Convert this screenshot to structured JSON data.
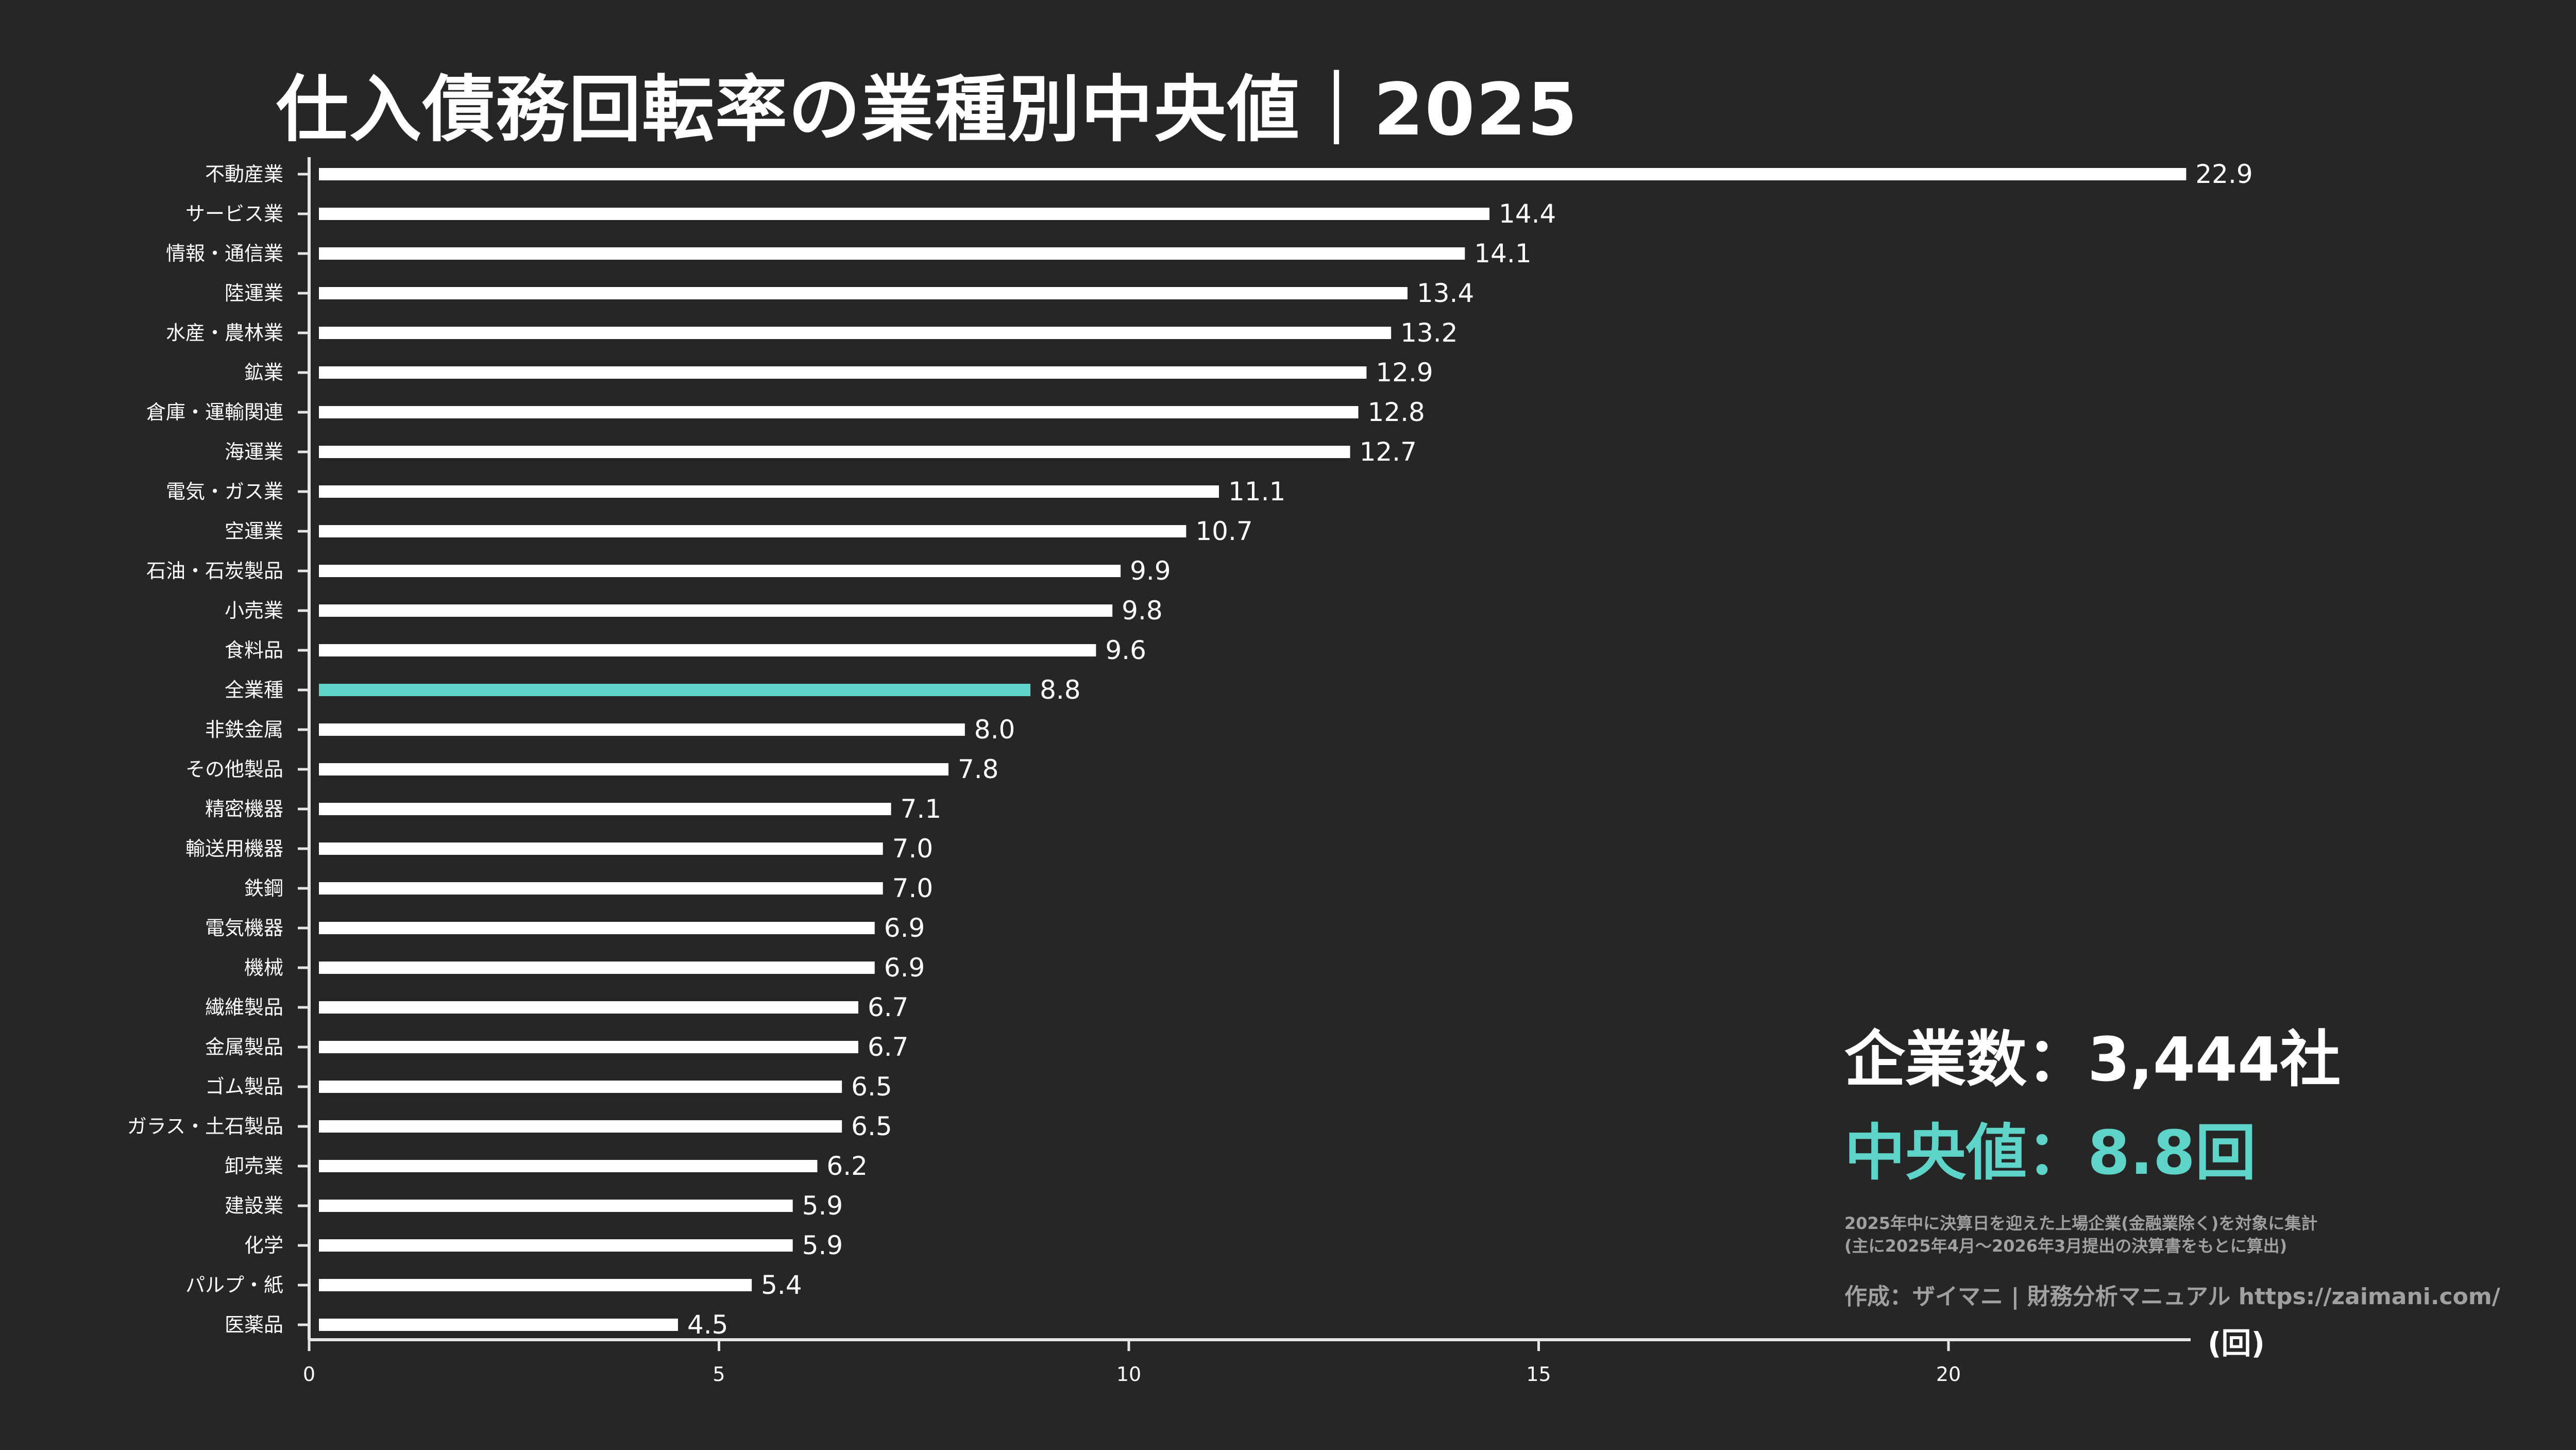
{
  "chart_data": {
    "type": "bar",
    "orientation": "horizontal",
    "title": "仕入債務回転率の業種別中央値｜2025",
    "categories": [
      "不動産業",
      "サービス業",
      "情報・通信業",
      "陸運業",
      "水産・農林業",
      "鉱業",
      "倉庫・運輸関連",
      "海運業",
      "電気・ガス業",
      "空運業",
      "石油・石炭製品",
      "小売業",
      "食料品",
      "全業種",
      "非鉄金属",
      "その他製品",
      "精密機器",
      "輸送用機器",
      "鉄鋼",
      "電気機器",
      "機械",
      "繊維製品",
      "金属製品",
      "ゴム製品",
      "ガラス・土石製品",
      "卸売業",
      "建設業",
      "化学",
      "パルプ・紙",
      "医薬品"
    ],
    "values": [
      22.9,
      14.4,
      14.1,
      13.4,
      13.2,
      12.9,
      12.8,
      12.7,
      11.1,
      10.7,
      9.9,
      9.8,
      9.6,
      8.8,
      8.0,
      7.8,
      7.1,
      7.0,
      7.0,
      6.9,
      6.9,
      6.7,
      6.7,
      6.5,
      6.5,
      6.2,
      5.9,
      5.9,
      5.4,
      4.5
    ],
    "value_labels": [
      "22.9",
      "14.4",
      "14.1",
      "13.4",
      "13.2",
      "12.9",
      "12.8",
      "12.7",
      "11.1",
      "10.7",
      "9.9",
      "9.8",
      "9.6",
      "8.8",
      "8.0",
      "7.8",
      "7.1",
      "7.0",
      "7.0",
      "6.9",
      "6.9",
      "6.7",
      "6.7",
      "6.5",
      "6.5",
      "6.2",
      "5.9",
      "5.9",
      "5.4",
      "4.5"
    ],
    "highlight_category": "全業種",
    "xlim": [
      0,
      23
    ],
    "xticks": [
      0,
      5,
      10,
      15,
      20
    ],
    "xlabel": "(回)",
    "ylabel": "",
    "grid": false,
    "legend": "none",
    "colors": {
      "bar": "#ffffff",
      "highlight": "#5ed3c8",
      "background": "#262626"
    }
  },
  "info": {
    "company_count": "企業数：3,444社",
    "median": "中央値：8.8回",
    "note_line1": "2025年中に決算日を迎えた上場企業(金融業除く)を対象に集計",
    "note_line2": "(主に2025年4月〜2026年3月提出の決算書をもとに算出)",
    "credit": "作成：ザイマニ | 財務分析マニュアル https://zaimani.com/"
  }
}
